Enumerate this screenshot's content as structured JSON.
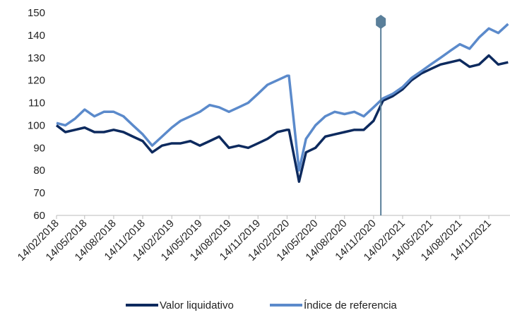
{
  "chart_data": {
    "type": "line",
    "x": [
      "14/02/2018",
      "14/03/2018",
      "14/04/2018",
      "14/05/2018",
      "14/06/2018",
      "14/07/2018",
      "14/08/2018",
      "14/09/2018",
      "14/10/2018",
      "14/11/2018",
      "14/12/2018",
      "14/01/2019",
      "14/02/2019",
      "14/03/2019",
      "14/04/2019",
      "14/05/2019",
      "14/06/2019",
      "14/07/2019",
      "14/08/2019",
      "14/09/2019",
      "14/10/2019",
      "14/11/2019",
      "14/12/2019",
      "14/01/2020",
      "14/02/2020",
      "20/02/2020",
      "23/03/2020",
      "14/04/2020",
      "14/05/2020",
      "14/06/2020",
      "14/07/2020",
      "14/08/2020",
      "14/09/2020",
      "14/10/2020",
      "14/11/2020",
      "14/12/2020",
      "14/01/2021",
      "14/02/2021",
      "14/03/2021",
      "14/04/2021",
      "14/05/2021",
      "14/06/2021",
      "14/07/2021",
      "14/08/2021",
      "14/09/2021",
      "14/10/2021",
      "14/11/2021",
      "14/12/2021",
      "14/01/2022"
    ],
    "series": [
      {
        "name": "Valor liquidativo",
        "color": "#0d2a5e",
        "values": [
          100,
          97,
          98,
          99,
          97,
          97,
          98,
          97,
          95,
          93,
          88,
          91,
          92,
          92,
          93,
          91,
          93,
          95,
          90,
          91,
          90,
          92,
          94,
          97,
          98,
          98,
          75,
          88,
          90,
          95,
          96,
          97,
          98,
          98,
          102,
          111,
          113,
          116,
          120,
          123,
          125,
          127,
          128,
          129,
          126,
          127,
          131,
          127,
          128
        ]
      },
      {
        "name": "Índice de referencia",
        "color": "#5b8acb",
        "values": [
          101,
          100,
          103,
          107,
          104,
          106,
          106,
          104,
          100,
          96,
          91,
          95,
          99,
          102,
          104,
          106,
          109,
          108,
          106,
          108,
          110,
          114,
          118,
          120,
          122,
          122,
          80,
          94,
          100,
          104,
          106,
          105,
          106,
          104,
          108,
          112,
          114,
          117,
          121,
          124,
          127,
          130,
          133,
          136,
          134,
          139,
          143,
          141,
          145
        ]
      }
    ],
    "xlim": [
      "14/02/2018",
      "20/01/2022"
    ],
    "xticks": [
      "14/02/2018",
      "14/05/2018",
      "14/08/2018",
      "14/11/2018",
      "14/02/2019",
      "14/05/2019",
      "14/08/2019",
      "14/11/2019",
      "14/02/2020",
      "14/05/2020",
      "14/08/2020",
      "14/11/2020",
      "14/02/2021",
      "14/05/2021",
      "14/08/2021",
      "14/11/2021"
    ],
    "ylim": [
      60,
      150
    ],
    "yticks": [
      60,
      70,
      80,
      90,
      100,
      110,
      120,
      130,
      140,
      150
    ],
    "vline": "07/12/2020",
    "vline_color": "#5a7f9a"
  }
}
